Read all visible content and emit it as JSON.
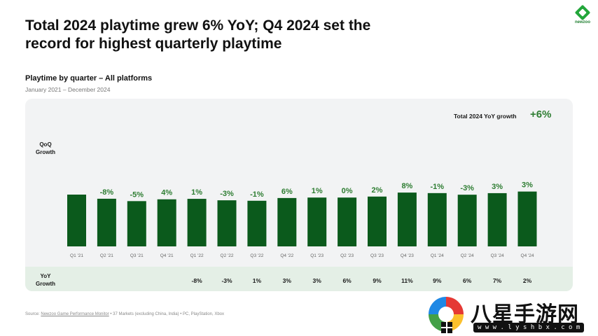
{
  "headline": "Total 2024 playtime grew 6% YoY; Q4 2024 set the record for highest quarterly playtime",
  "logo": {
    "text": "newzoo",
    "icon": "newzoo-logo-icon"
  },
  "chart_data": {
    "type": "bar",
    "title": "Playtime by quarter – All platforms",
    "subtitle": "January 2021 – December 2024",
    "total_label": "Total 2024 YoY growth",
    "total_value": "+6%",
    "qoq_label_line1": "QoQ",
    "qoq_label_line2": "Growth",
    "yoy_label_line1": "YoY",
    "yoy_label_line2": "Growth",
    "categories": [
      "Q1 '21",
      "Q2 '21",
      "Q3 '21",
      "Q4 '21",
      "Q1 '22",
      "Q2 '22",
      "Q3 '22",
      "Q4 '22",
      "Q1 '23",
      "Q2 '23",
      "Q3 '23",
      "Q4 '23",
      "Q1 '24",
      "Q2 '24",
      "Q3 '24",
      "Q4 '24"
    ],
    "values": [
      100,
      92,
      87.4,
      90.9,
      91.8,
      89,
      88.1,
      93.4,
      94.3,
      94.3,
      96.2,
      103.9,
      102.9,
      99.8,
      102.8,
      105.9
    ],
    "qoq_labels": [
      "",
      "-8%",
      "-5%",
      "4%",
      "1%",
      "-3%",
      "-1%",
      "6%",
      "1%",
      "0%",
      "2%",
      "8%",
      "-1%",
      "-3%",
      "3%",
      "3%"
    ],
    "yoy_labels": [
      "",
      "",
      "",
      "",
      "-8%",
      "-3%",
      "1%",
      "3%",
      "3%",
      "6%",
      "9%",
      "11%",
      "9%",
      "6%",
      "7%",
      "2%"
    ],
    "bar_color": "#0b5a1c",
    "label_color": "#2e7d32"
  },
  "source": {
    "prefix": "Source: ",
    "link": "Newzoo Game Performance Monitor",
    "suffix": " • 37 Markets (excluding China, India) • PC, PlayStation, Xbox"
  },
  "watermark": {
    "title": "八星手游网",
    "url": "w w w . l y s h b x . c o m"
  }
}
